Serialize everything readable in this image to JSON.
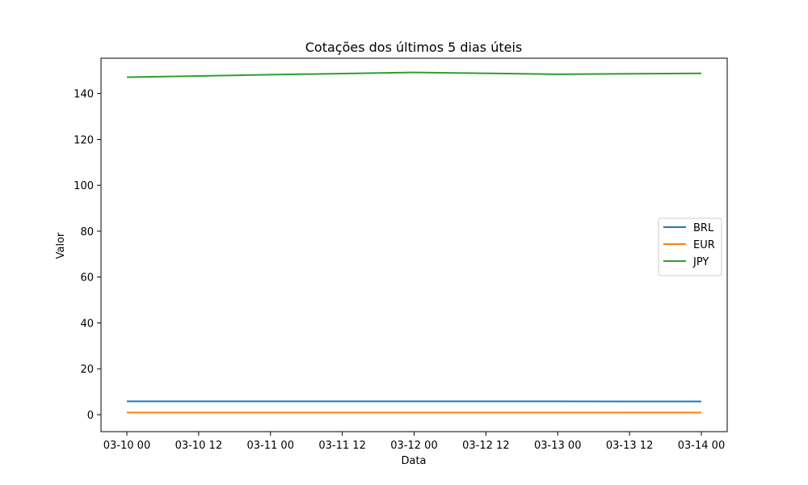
{
  "chart_data": {
    "type": "line",
    "title": "Cotações dos últimos 5 dias úteis",
    "xlabel": "Data",
    "ylabel": "Valor",
    "x": [
      "2025-03-10",
      "2025-03-11",
      "2025-03-12",
      "2025-03-13",
      "2025-03-14"
    ],
    "x_ticks": [
      "03-10 00",
      "03-10 12",
      "03-11 00",
      "03-11 12",
      "03-12 00",
      "03-12 12",
      "03-13 00",
      "03-13 12",
      "03-14 00"
    ],
    "y_ticks": [
      0,
      20,
      40,
      60,
      80,
      100,
      120,
      140
    ],
    "ylim": [
      -7.4,
      155.4
    ],
    "xlim_days": [
      -0.18,
      4.18
    ],
    "grid": false,
    "legend_position": "center-right",
    "series": [
      {
        "name": "BRL",
        "color": "#1f77b4",
        "values": [
          5.81,
          5.82,
          5.82,
          5.81,
          5.76
        ]
      },
      {
        "name": "EUR",
        "color": "#ff7f0e",
        "values": [
          0.92,
          0.92,
          0.92,
          0.92,
          0.92
        ]
      },
      {
        "name": "JPY",
        "color": "#2ca02c",
        "values": [
          147.1,
          148.2,
          149.2,
          148.4,
          148.8
        ]
      }
    ]
  }
}
